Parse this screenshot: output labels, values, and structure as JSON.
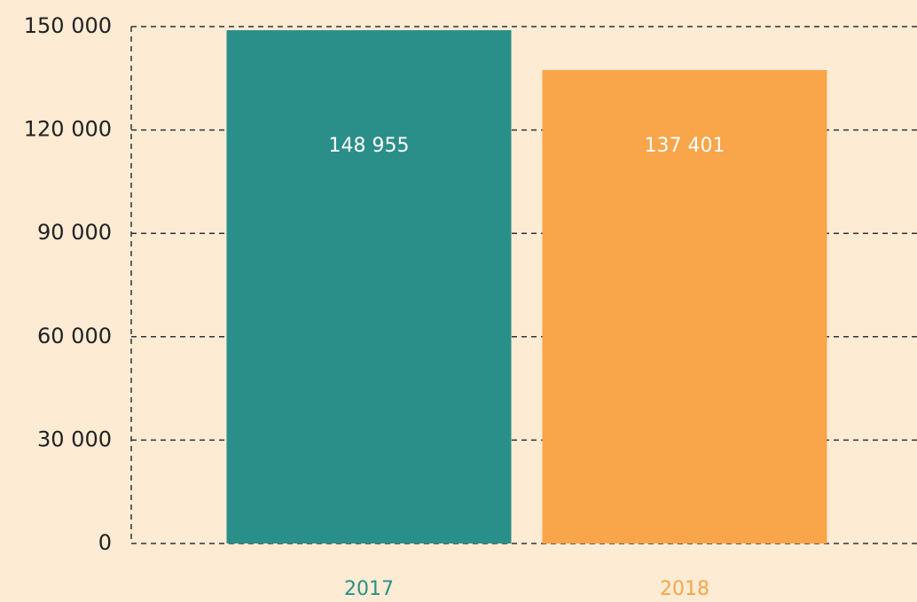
{
  "chart_data": {
    "type": "bar",
    "categories": [
      "2017",
      "2018"
    ],
    "values": [
      148955,
      137401
    ],
    "value_labels": [
      "148 955",
      "137 401"
    ],
    "colors": [
      "#2b8f89",
      "#f9a54a"
    ],
    "ylim": [
      0,
      150000
    ],
    "yticks": [
      0,
      {
        "value": 30000,
        "label": "30 000"
      },
      {
        "value": 60000,
        "label": "60 000"
      },
      {
        "value": 90000,
        "label": "90 000"
      },
      {
        "value": 120000,
        "label": "120 000"
      },
      {
        "value": 150000,
        "label": "150 000"
      }
    ],
    "grid": true
  }
}
